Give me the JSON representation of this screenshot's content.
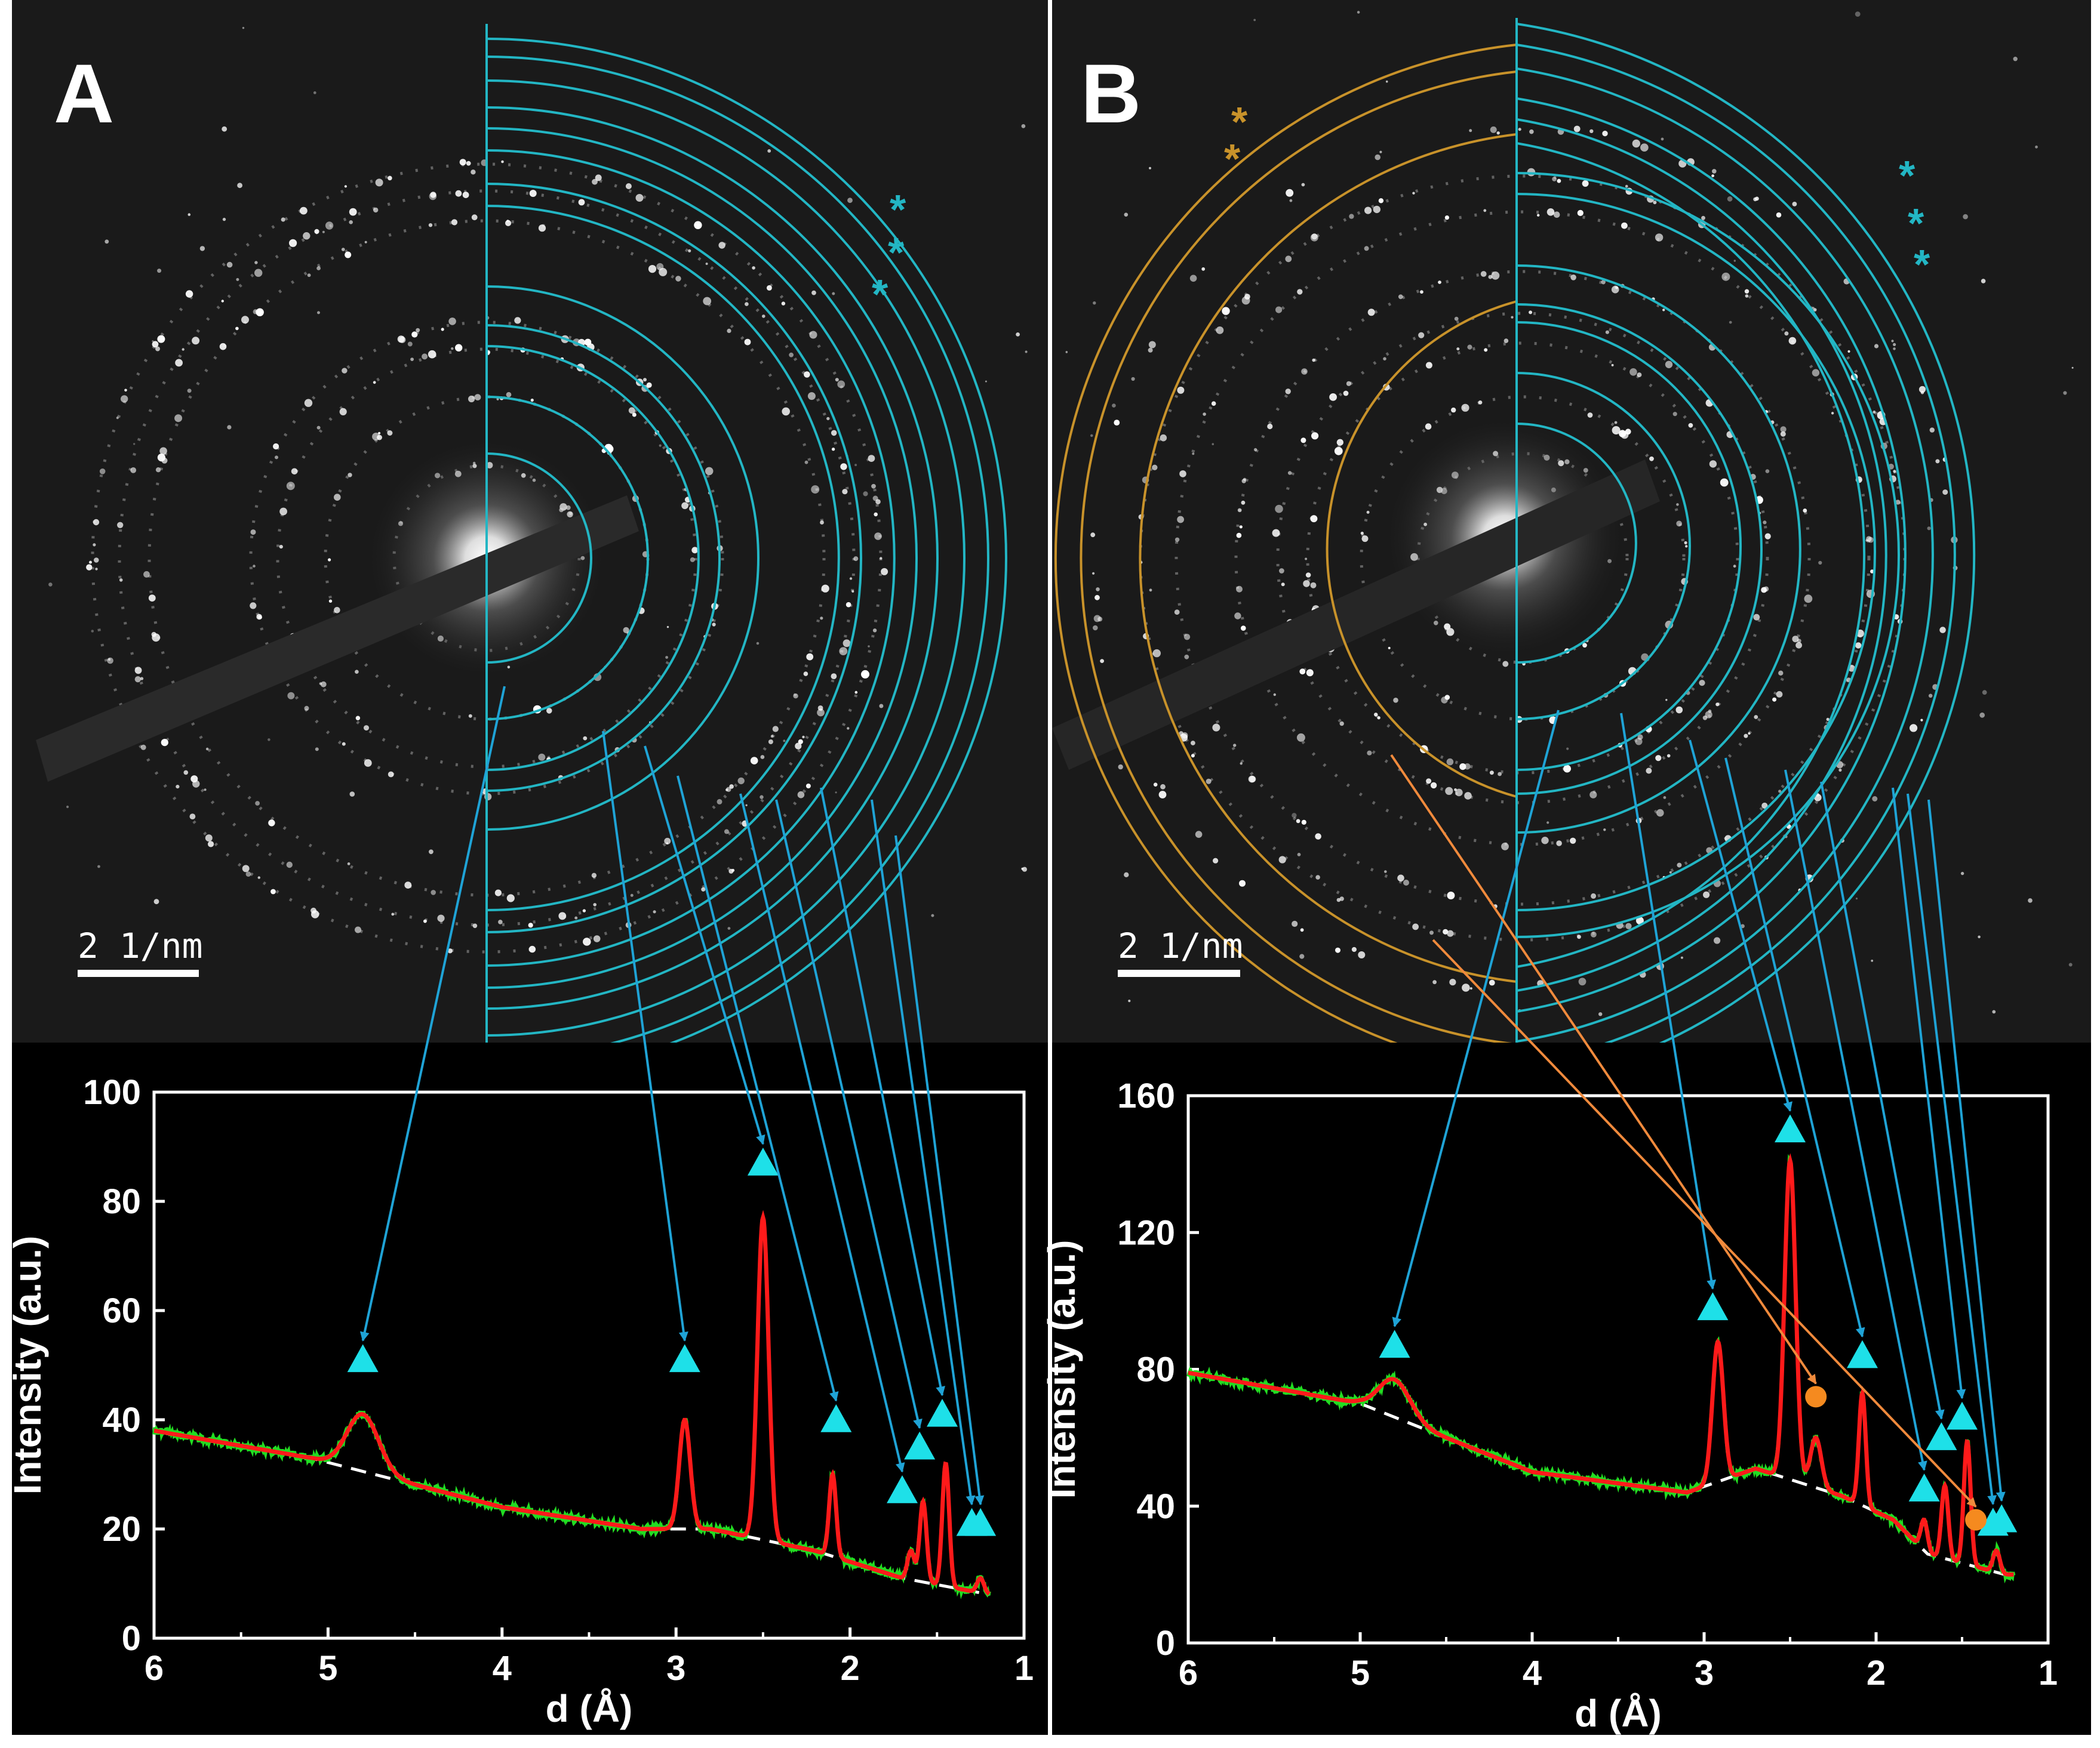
{
  "colors": {
    "background": "#000000",
    "ring_cyan": "#23b6c4",
    "ring_orange": "#c8922a",
    "arrow_cyan": "#1fa3d6",
    "arrow_orange": "#f08a3c",
    "marker_cyan": "#1ee0e8",
    "marker_orange": "#f58a1f",
    "fit_red": "#ff1a1a",
    "data_green": "#22dd22",
    "baseline_white": "#ffffff"
  },
  "panels": {
    "A": {
      "letter": "A",
      "scale_bar": "2 1/nm"
    },
    "B": {
      "letter": "B",
      "scale_bar": "2 1/nm"
    }
  },
  "chart_data": [
    {
      "type": "line",
      "panel": "A",
      "title": "",
      "xlabel": "d (Å)",
      "ylabel": "Intensity (a.u.)",
      "xlim": [
        6,
        1
      ],
      "ylim": [
        0,
        100
      ],
      "x_ticks": [
        "6",
        "5",
        "4",
        "3",
        "2",
        "1"
      ],
      "y_ticks": [
        "0",
        "20",
        "40",
        "60",
        "80",
        "100"
      ],
      "baseline": {
        "name": "background",
        "style": "dashed",
        "x": [
          6,
          5.1,
          4,
          3.2,
          2.8,
          2.2,
          1.7,
          1.2
        ],
        "y": [
          38,
          33,
          24,
          20,
          20,
          16,
          11,
          8
        ]
      },
      "peaks": [
        {
          "d": 4.8,
          "height": 41
        },
        {
          "d": 2.95,
          "height": 40
        },
        {
          "d": 2.5,
          "height": 77
        },
        {
          "d": 2.1,
          "height": 30
        },
        {
          "d": 1.65,
          "height": 16
        },
        {
          "d": 1.58,
          "height": 25
        },
        {
          "d": 1.45,
          "height": 32
        },
        {
          "d": 1.25,
          "height": 11
        }
      ],
      "markers_cyan_triangle": [
        {
          "d": 4.8,
          "y": 51
        },
        {
          "d": 2.95,
          "y": 51
        },
        {
          "d": 2.5,
          "y": 87
        },
        {
          "d": 2.08,
          "y": 40
        },
        {
          "d": 1.7,
          "y": 27
        },
        {
          "d": 1.6,
          "y": 35
        },
        {
          "d": 1.47,
          "y": 41
        },
        {
          "d": 1.3,
          "y": 21
        },
        {
          "d": 1.25,
          "y": 21
        }
      ],
      "series": [
        {
          "name": "data",
          "color": "#22dd22"
        },
        {
          "name": "fit",
          "color": "#ff1a1a"
        }
      ]
    },
    {
      "type": "line",
      "panel": "B",
      "title": "",
      "xlabel": "d (Å)",
      "ylabel": "Intensity (a.u.)",
      "xlim": [
        6,
        1
      ],
      "ylim": [
        0,
        160
      ],
      "x_ticks": [
        "6",
        "5",
        "4",
        "3",
        "2",
        "1"
      ],
      "y_ticks": [
        "0",
        "40",
        "80",
        "120",
        "160"
      ],
      "baseline": {
        "name": "background",
        "style": "dashed",
        "x": [
          6,
          5,
          4,
          3.1,
          2.7,
          2.2,
          1.9,
          1.7,
          1.25
        ],
        "y": [
          79,
          70,
          50,
          44,
          51,
          43,
          36,
          26,
          20
        ]
      },
      "peaks": [
        {
          "d": 4.8,
          "height": 77
        },
        {
          "d": 2.92,
          "height": 88
        },
        {
          "d": 2.5,
          "height": 141
        },
        {
          "d": 2.35,
          "height": 60
        },
        {
          "d": 2.08,
          "height": 73
        },
        {
          "d": 1.72,
          "height": 36
        },
        {
          "d": 1.6,
          "height": 46
        },
        {
          "d": 1.47,
          "height": 59
        },
        {
          "d": 1.3,
          "height": 27
        }
      ],
      "markers_cyan_triangle": [
        {
          "d": 4.8,
          "y": 87
        },
        {
          "d": 2.95,
          "y": 98
        },
        {
          "d": 2.5,
          "y": 150
        },
        {
          "d": 2.08,
          "y": 84
        },
        {
          "d": 1.72,
          "y": 45
        },
        {
          "d": 1.62,
          "y": 60
        },
        {
          "d": 1.5,
          "y": 66
        },
        {
          "d": 1.32,
          "y": 35
        },
        {
          "d": 1.27,
          "y": 36
        }
      ],
      "markers_orange_circle": [
        {
          "d": 2.35,
          "y": 72
        },
        {
          "d": 1.42,
          "y": 36
        }
      ],
      "series": [
        {
          "name": "data",
          "color": "#22dd22"
        },
        {
          "name": "fit",
          "color": "#ff1a1a"
        }
      ]
    }
  ]
}
